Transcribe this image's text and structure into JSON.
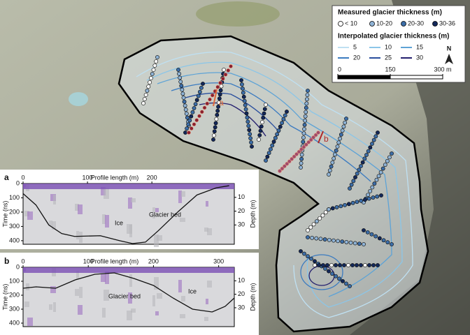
{
  "map": {
    "legend": {
      "measured_title": "Measured glacier thickness (m)",
      "measured_items": [
        {
          "label": "< 10",
          "color": "#ffffff"
        },
        {
          "label": "10-20",
          "color": "#8fb3d6"
        },
        {
          "label": "20-30",
          "color": "#3d6ea8"
        },
        {
          "label": "30-36",
          "color": "#13285a"
        }
      ],
      "interpolated_title": "Interpolated glacier thickness (m)",
      "interpolated_items": [
        {
          "label": "5",
          "color": "#bfe0f2"
        },
        {
          "label": "10",
          "color": "#8cc6e8"
        },
        {
          "label": "15",
          "color": "#5ea3d6"
        },
        {
          "label": "20",
          "color": "#3b7bc0"
        },
        {
          "label": "25",
          "color": "#2a4f9e"
        },
        {
          "label": "30",
          "color": "#241f6e"
        }
      ]
    },
    "scale_ticks": [
      0,
      150,
      {
        "value": 300,
        "label": "300 m"
      }
    ],
    "north": "N",
    "profile_labels": [
      "a",
      "b"
    ]
  },
  "chart_data": [
    {
      "type": "line",
      "panel": "a",
      "xlabel": "Profile length (m)",
      "ylabel": "Time (ns)",
      "y2label": "Depth (m)",
      "xlim": [
        0,
        328
      ],
      "xticks": [
        0,
        100,
        200
      ],
      "ylim": [
        0,
        425
      ],
      "yticks": [
        0,
        100,
        200,
        300,
        400
      ],
      "y2lim": [
        0,
        44
      ],
      "y2ticks": [
        10,
        20,
        30
      ],
      "annotations": [
        "Ice",
        "Glacier bed"
      ],
      "series": [
        {
          "color": "#111111",
          "x": [
            0,
            20,
            40,
            60,
            80,
            120,
            150,
            170,
            190,
            210,
            240,
            270,
            300,
            320
          ],
          "values": [
            70,
            150,
            290,
            350,
            370,
            365,
            400,
            420,
            410,
            330,
            200,
            80,
            30,
            15
          ]
        }
      ]
    },
    {
      "type": "line",
      "panel": "b",
      "xlabel": "Profile length (m)",
      "ylabel": "Time (ns)",
      "y2label": "Depth (m)",
      "xlim": [
        0,
        324
      ],
      "xticks": [
        0,
        100,
        200,
        300
      ],
      "ylim": [
        0,
        425
      ],
      "yticks": [
        0,
        100,
        200,
        300,
        400
      ],
      "y2lim": [
        0,
        44
      ],
      "y2ticks": [
        10,
        20,
        30
      ],
      "annotations": [
        "Ice",
        "Glacier bed"
      ],
      "series": [
        {
          "color": "#111111",
          "x": [
            0,
            20,
            50,
            80,
            110,
            140,
            170,
            200,
            230,
            260,
            290,
            310,
            324
          ],
          "values": [
            150,
            140,
            150,
            90,
            50,
            40,
            80,
            130,
            220,
            300,
            320,
            280,
            220
          ]
        }
      ]
    }
  ]
}
